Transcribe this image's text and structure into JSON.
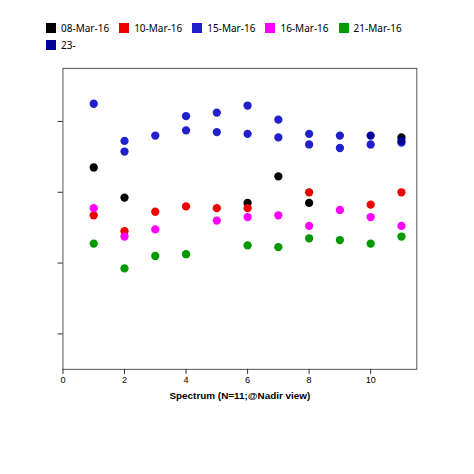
{
  "chart_data": {
    "type": "scatter",
    "xlabel": "Spectrum (N=11;@Nadir view)",
    "xlim": [
      0,
      11.5
    ],
    "ylim": [
      1,
      9.5
    ],
    "xticks": [
      0,
      2,
      4,
      6,
      8,
      10
    ],
    "yticks": [
      2,
      4,
      6,
      8
    ],
    "tick_labels": "x",
    "legend": "upper left",
    "marker": "circle",
    "series": [
      {
        "name": "08-Mar-16",
        "color": "#000000",
        "x": [
          1,
          2,
          6,
          7,
          8,
          11
        ],
        "values": [
          6.7,
          5.85,
          5.7,
          6.45,
          5.7,
          7.55
        ]
      },
      {
        "name": "10-Mar-16",
        "color": "#ee0000",
        "x": [
          1,
          2,
          3,
          4,
          5,
          6,
          8,
          10,
          11
        ],
        "values": [
          5.35,
          4.9,
          5.45,
          5.6,
          5.55,
          5.55,
          6.0,
          5.65,
          6.0
        ]
      },
      {
        "name": "15-Mar-16",
        "color": "#2020cc",
        "x": [
          1,
          2,
          2,
          3,
          4,
          4,
          5,
          5,
          6,
          6,
          7,
          7,
          8,
          8,
          9,
          9,
          10,
          11
        ],
        "values": [
          8.5,
          7.15,
          7.45,
          7.6,
          8.15,
          7.75,
          8.25,
          7.7,
          8.45,
          7.65,
          8.05,
          7.55,
          7.35,
          7.65,
          7.25,
          7.6,
          7.35,
          7.4
        ]
      },
      {
        "name": "16-Mar-16",
        "color": "#ff00ff",
        "x": [
          1,
          2,
          3,
          5,
          6,
          7,
          8,
          9,
          10,
          11
        ],
        "values": [
          5.55,
          4.75,
          4.95,
          5.2,
          5.3,
          5.35,
          5.05,
          5.5,
          5.3,
          5.05
        ]
      },
      {
        "name": "21-Mar-16",
        "color": "#009900",
        "x": [
          1,
          2,
          3,
          4,
          6,
          7,
          8,
          9,
          10,
          11
        ],
        "values": [
          4.55,
          3.85,
          4.2,
          4.25,
          4.5,
          4.45,
          4.7,
          4.65,
          4.55,
          4.75
        ]
      },
      {
        "name": "23-",
        "color": "#000099",
        "x": [
          10,
          11
        ],
        "values": [
          7.6,
          7.45
        ]
      }
    ]
  }
}
